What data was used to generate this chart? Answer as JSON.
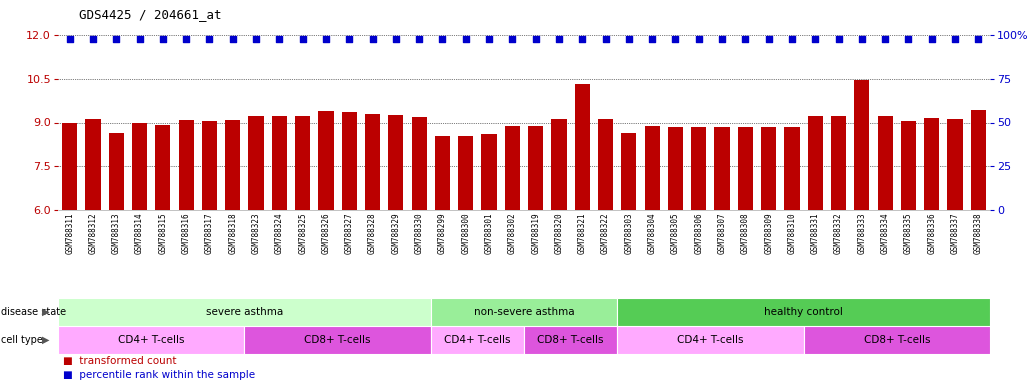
{
  "title": "GDS4425 / 204661_at",
  "samples": [
    "GSM788311",
    "GSM788312",
    "GSM788313",
    "GSM788314",
    "GSM788315",
    "GSM788316",
    "GSM788317",
    "GSM788318",
    "GSM788323",
    "GSM788324",
    "GSM788325",
    "GSM788326",
    "GSM788327",
    "GSM788328",
    "GSM788329",
    "GSM788330",
    "GSM788299",
    "GSM788300",
    "GSM788301",
    "GSM788302",
    "GSM788319",
    "GSM788320",
    "GSM788321",
    "GSM788322",
    "GSM788303",
    "GSM788304",
    "GSM788305",
    "GSM788306",
    "GSM788307",
    "GSM788308",
    "GSM788309",
    "GSM788310",
    "GSM788331",
    "GSM788332",
    "GSM788333",
    "GSM788334",
    "GSM788335",
    "GSM788336",
    "GSM788337",
    "GSM788338"
  ],
  "bar_values": [
    8.97,
    9.12,
    8.63,
    8.97,
    8.93,
    9.07,
    9.05,
    9.07,
    9.23,
    9.22,
    9.22,
    9.38,
    9.35,
    9.28,
    9.25,
    9.18,
    8.55,
    8.53,
    8.62,
    8.87,
    8.87,
    9.12,
    10.32,
    9.12,
    8.65,
    8.88,
    8.85,
    8.85,
    8.83,
    8.85,
    8.85,
    8.83,
    9.22,
    9.24,
    10.47,
    9.23,
    9.05,
    9.17,
    9.12,
    9.42
  ],
  "percentile_values": [
    98,
    98,
    98,
    98,
    98,
    98,
    98,
    98,
    98,
    98,
    98,
    98,
    98,
    98,
    98,
    98,
    98,
    98,
    98,
    98,
    98,
    98,
    98,
    98,
    98,
    98,
    98,
    98,
    98,
    98,
    98,
    98,
    98,
    98,
    98,
    98,
    98,
    98,
    98,
    98
  ],
  "ylim_left": [
    6,
    12
  ],
  "ylim_right": [
    0,
    100
  ],
  "yticks_left": [
    6,
    7.5,
    9,
    10.5,
    12
  ],
  "yticks_right": [
    0,
    25,
    50,
    75,
    100
  ],
  "bar_color": "#bb0000",
  "dot_color": "#0000cc",
  "background_color": "#ffffff",
  "tick_bg_color": "#e0e0e0",
  "disease_state_label": "disease state",
  "cell_type_label": "cell type",
  "disease_state": {
    "groups": [
      {
        "label": "severe asthma",
        "start": 0,
        "end": 15,
        "color": "#ccffcc"
      },
      {
        "label": "non-severe asthma",
        "start": 16,
        "end": 23,
        "color": "#99ee99"
      },
      {
        "label": "healthy control",
        "start": 24,
        "end": 39,
        "color": "#55cc55"
      }
    ]
  },
  "cell_type": {
    "groups": [
      {
        "label": "CD4+ T-cells",
        "start": 0,
        "end": 7,
        "color": "#ffaaff"
      },
      {
        "label": "CD8+ T-cells",
        "start": 8,
        "end": 15,
        "color": "#dd55dd"
      },
      {
        "label": "CD4+ T-cells",
        "start": 16,
        "end": 19,
        "color": "#ffaaff"
      },
      {
        "label": "CD8+ T-cells",
        "start": 20,
        "end": 23,
        "color": "#dd55dd"
      },
      {
        "label": "CD4+ T-cells",
        "start": 24,
        "end": 31,
        "color": "#ffaaff"
      },
      {
        "label": "CD8+ T-cells",
        "start": 32,
        "end": 39,
        "color": "#dd55dd"
      }
    ]
  }
}
